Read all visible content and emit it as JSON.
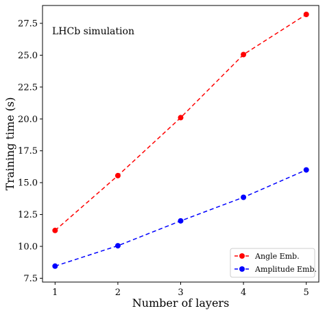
{
  "chart_data": {
    "type": "line",
    "xlabel": "Number of layers",
    "ylabel": "Training time (s)",
    "annotation": "LHCb simulation",
    "x": [
      1,
      2,
      3,
      4,
      5
    ],
    "xticks": [
      "1",
      "2",
      "3",
      "4",
      "5"
    ],
    "yticks": [
      "7.5",
      "10.0",
      "12.5",
      "15.0",
      "17.5",
      "20.0",
      "22.5",
      "25.0",
      "27.5"
    ],
    "xlim": [
      0.8,
      5.2
    ],
    "ylim": [
      7.2,
      28.9
    ],
    "grid": false,
    "legend_position": "bottom-right",
    "series": [
      {
        "name": "Angle Emb.",
        "color": "#ff0000",
        "values": [
          11.25,
          15.55,
          20.1,
          25.05,
          28.2
        ]
      },
      {
        "name": "Amplitude Emb.",
        "color": "#0000ff",
        "values": [
          8.45,
          10.05,
          12.0,
          13.85,
          16.0
        ]
      }
    ]
  }
}
